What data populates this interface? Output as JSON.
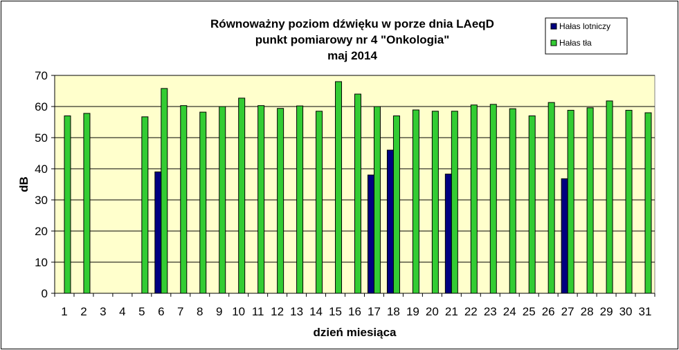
{
  "chart_data": {
    "type": "bar",
    "title": [
      "Równoważny poziom dźwięku w porze dnia LAeqD",
      "punkt pomiarowy nr 4 \"Onkologia\"",
      "maj 2014"
    ],
    "xlabel": "dzień miesiąca",
    "ylabel": "dB",
    "ylim": [
      0,
      70
    ],
    "yticks": [
      0,
      10,
      20,
      30,
      40,
      50,
      60,
      70
    ],
    "grid": true,
    "legend_position": "top-right",
    "plot_background": "#ffffcc",
    "categories": [
      "1",
      "2",
      "3",
      "4",
      "5",
      "6",
      "7",
      "8",
      "9",
      "10",
      "11",
      "12",
      "13",
      "14",
      "15",
      "16",
      "17",
      "18",
      "19",
      "20",
      "21",
      "22",
      "23",
      "24",
      "25",
      "26",
      "27",
      "28",
      "29",
      "30",
      "31"
    ],
    "series": [
      {
        "name": "Hałas lotniczy",
        "color": "#000080",
        "values": [
          null,
          null,
          null,
          null,
          null,
          39.0,
          null,
          null,
          null,
          null,
          null,
          null,
          null,
          null,
          null,
          null,
          38.0,
          46.0,
          null,
          null,
          38.3,
          null,
          null,
          null,
          null,
          null,
          36.8,
          null,
          null,
          null,
          null
        ]
      },
      {
        "name": "Hałas tła",
        "color": "#33cc33",
        "values": [
          57.0,
          57.8,
          null,
          null,
          56.7,
          65.8,
          60.3,
          58.2,
          60.0,
          62.7,
          60.3,
          59.4,
          60.2,
          58.5,
          68.0,
          64.0,
          60.0,
          57.0,
          58.9,
          58.5,
          58.5,
          60.5,
          60.7,
          59.3,
          57.0,
          61.3,
          58.8,
          59.6,
          61.8,
          58.8,
          58.0
        ]
      }
    ]
  }
}
